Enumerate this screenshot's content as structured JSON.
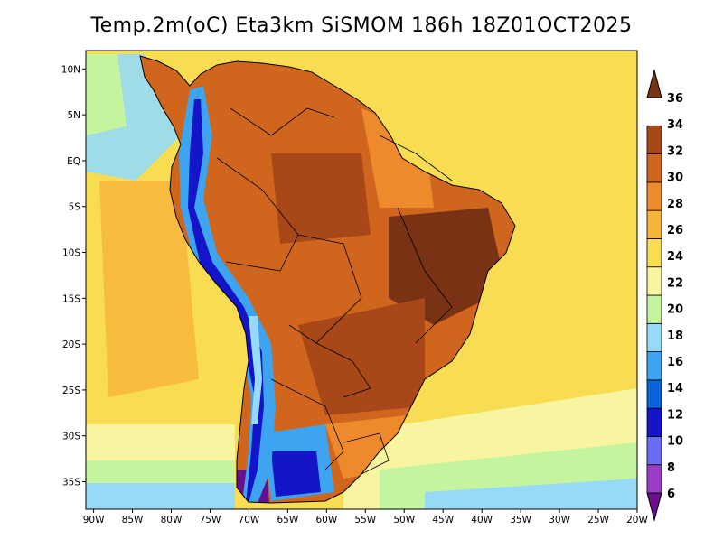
{
  "title": "Temp.2m(oC) Eta3km SiSMOM 186h 18Z01OCT2025",
  "map": {
    "variable": "Temp.2m(oC)",
    "model": "Eta3km",
    "run": "SiSMOM",
    "forecast_hour": "186h",
    "valid_time": "18Z01OCT2025",
    "region": "South America",
    "lon_range": [
      -91,
      -20
    ],
    "lat_range": [
      -38,
      12
    ]
  },
  "lat_labels": [
    "10N",
    "5N",
    "EQ",
    "5S",
    "10S",
    "15S",
    "20S",
    "25S",
    "30S",
    "35S"
  ],
  "lat_values": [
    10,
    5,
    0,
    -5,
    -10,
    -15,
    -20,
    -25,
    -30,
    -35
  ],
  "lon_labels": [
    "90W",
    "85W",
    "80W",
    "75W",
    "70W",
    "65W",
    "60W",
    "55W",
    "50W",
    "45W",
    "40W",
    "35W",
    "30W",
    "25W",
    "20W"
  ],
  "lon_values": [
    -90,
    -85,
    -80,
    -75,
    -70,
    -65,
    -60,
    -55,
    -50,
    -45,
    -40,
    -35,
    -30,
    -25,
    -20
  ],
  "colorbar": {
    "labels": [
      "36",
      "34",
      "32",
      "30",
      "28",
      "26",
      "24",
      "22",
      "20",
      "18",
      "16",
      "14",
      "12",
      "10",
      "8",
      "6"
    ],
    "bins": [
      {
        "range": "6-8",
        "color": "#6a0f8a"
      },
      {
        "range": "8-10",
        "color": "#9a3cc8"
      },
      {
        "range": "10-12",
        "color": "#6c6cf2"
      },
      {
        "range": "12-14",
        "color": "#1414c8"
      },
      {
        "range": "14-16",
        "color": "#0a64dc"
      },
      {
        "range": "16-18",
        "color": "#3ca4f0"
      },
      {
        "range": "18-20",
        "color": "#96daf8"
      },
      {
        "range": "20-22",
        "color": "#c4f49e"
      },
      {
        "range": "22-24",
        "color": "#f8f5a0"
      },
      {
        "range": "24-26",
        "color": "#f8dc52"
      },
      {
        "range": "26-28",
        "color": "#f6b43a"
      },
      {
        "range": "28-30",
        "color": "#ee8a2c"
      },
      {
        "range": "30-32",
        "color": "#d0661e"
      },
      {
        "range": "32-34",
        "color": "#a84818"
      },
      {
        "range": "34-36",
        "color": "#7a3214"
      }
    ]
  }
}
